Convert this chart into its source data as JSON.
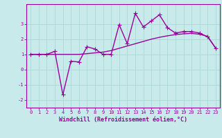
{
  "xlabel": "Windchill (Refroidissement éolien,°C)",
  "background_color": "#c8eaea",
  "grid_color": "#a8d8d8",
  "line_color": "#990099",
  "xlim": [
    -0.5,
    23.5
  ],
  "ylim": [
    -2.5,
    4.3
  ],
  "yticks": [
    -2,
    -1,
    0,
    1,
    2,
    3
  ],
  "xticks": [
    0,
    1,
    2,
    3,
    4,
    5,
    6,
    7,
    8,
    9,
    10,
    11,
    12,
    13,
    14,
    15,
    16,
    17,
    18,
    19,
    20,
    21,
    22,
    23
  ],
  "x": [
    0,
    1,
    2,
    3,
    4,
    5,
    6,
    7,
    8,
    9,
    10,
    11,
    12,
    13,
    14,
    15,
    16,
    17,
    18,
    19,
    20,
    21,
    22,
    23
  ],
  "y_jagged": [
    1.0,
    1.0,
    1.0,
    1.2,
    -1.65,
    0.55,
    0.5,
    1.5,
    1.35,
    1.0,
    1.0,
    2.95,
    1.7,
    3.7,
    2.8,
    3.2,
    3.6,
    2.75,
    2.4,
    2.5,
    2.5,
    2.4,
    2.15,
    1.4
  ],
  "y_smooth": [
    1.0,
    1.0,
    1.0,
    1.0,
    1.0,
    1.0,
    1.0,
    1.05,
    1.1,
    1.15,
    1.25,
    1.4,
    1.55,
    1.7,
    1.85,
    2.0,
    2.12,
    2.22,
    2.3,
    2.35,
    2.38,
    2.32,
    2.18,
    1.4
  ],
  "marker": "+",
  "markersize": 5,
  "linewidth": 1.0,
  "tick_fontsize": 5,
  "label_fontsize": 6,
  "label_fontweight": "bold"
}
